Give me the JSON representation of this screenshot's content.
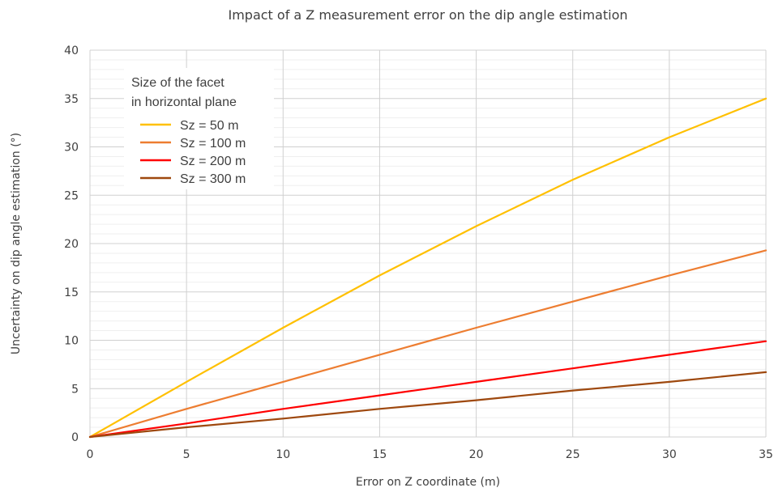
{
  "chart_data": {
    "type": "line",
    "title": "Impact of a Z measurement error on the dip angle estimation",
    "xlabel": "Error on Z coordinate (m)",
    "ylabel": "Uncertainty on dip angle estimation (°)",
    "xlim": [
      0,
      35
    ],
    "ylim": [
      0,
      40
    ],
    "xticks": [
      0,
      5,
      10,
      15,
      20,
      25,
      30,
      35
    ],
    "yticks": [
      0,
      5,
      10,
      15,
      20,
      25,
      30,
      35,
      40
    ],
    "minor_y_step": 1,
    "grid": true,
    "legend_title_lines": [
      "Size of the facet",
      "in horizontal plane"
    ],
    "legend_position": "top-left",
    "x": [
      0,
      5,
      10,
      15,
      20,
      25,
      30,
      35
    ],
    "series": [
      {
        "name": "Sz = 50 m",
        "color": "#FFC000",
        "values": [
          0,
          5.7,
          11.3,
          16.7,
          21.8,
          26.6,
          31.0,
          35.0
        ]
      },
      {
        "name": "Sz = 100 m",
        "color": "#ED7D31",
        "values": [
          0,
          2.9,
          5.7,
          8.5,
          11.3,
          14.0,
          16.7,
          19.3
        ]
      },
      {
        "name": "Sz = 200 m",
        "color": "#FF0000",
        "values": [
          0,
          1.4,
          2.9,
          4.3,
          5.7,
          7.1,
          8.5,
          9.9
        ]
      },
      {
        "name": "Sz = 300 m",
        "color": "#9E480E",
        "values": [
          0,
          1.0,
          1.9,
          2.9,
          3.8,
          4.8,
          5.7,
          6.7
        ]
      }
    ]
  }
}
